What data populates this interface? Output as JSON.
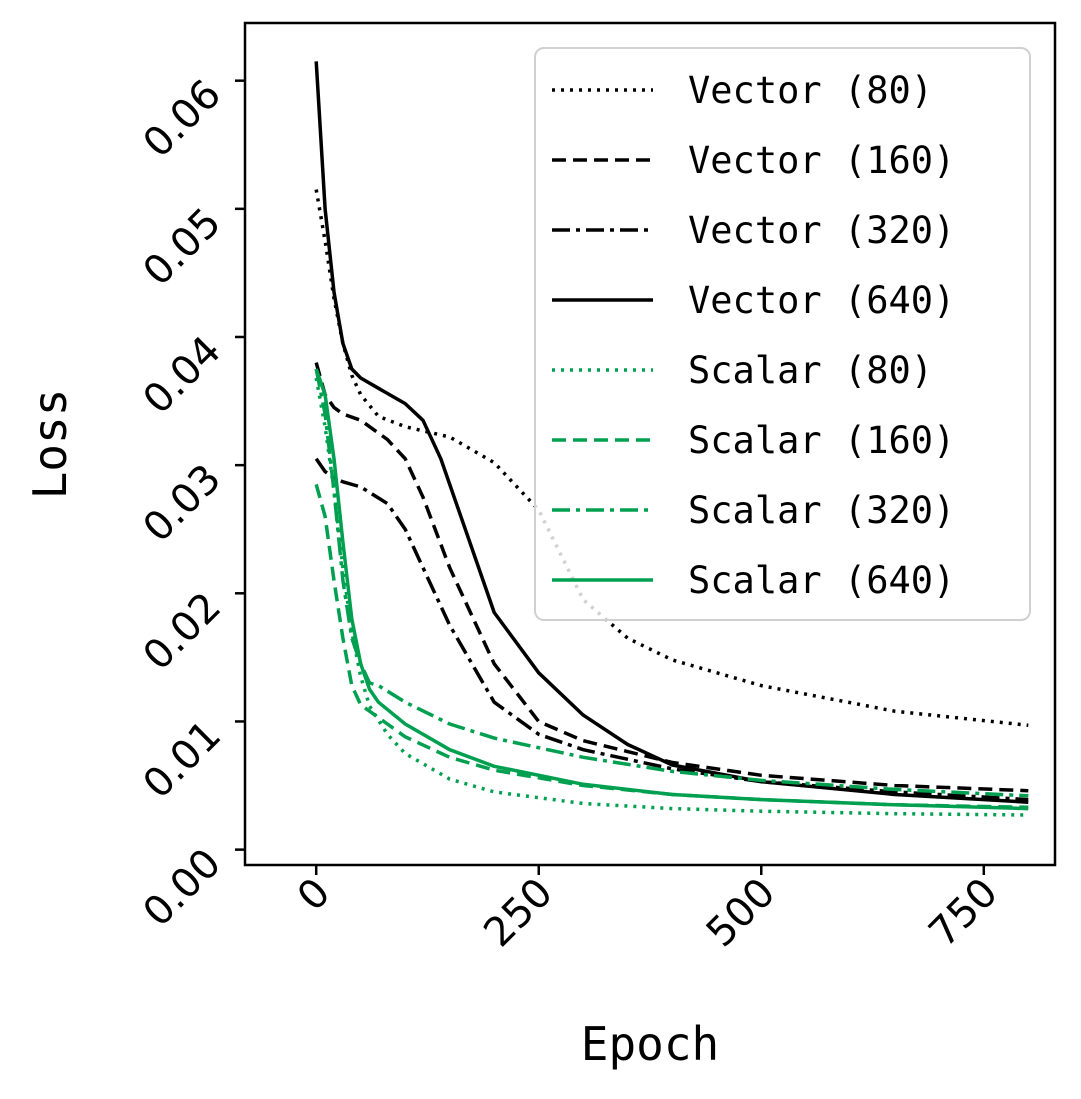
{
  "chart_data": {
    "type": "line",
    "title": "",
    "xlabel": "Epoch",
    "ylabel": "Loss",
    "xlim": [
      -80,
      830
    ],
    "ylim": [
      -0.0012,
      0.0645
    ],
    "xticks": [
      0,
      250,
      500,
      750
    ],
    "xtick_labels": [
      "0",
      "250",
      "500",
      "750"
    ],
    "yticks": [
      0.0,
      0.01,
      0.02,
      0.03,
      0.04,
      0.05,
      0.06
    ],
    "ytick_labels": [
      "0.00",
      "0.01",
      "0.02",
      "0.03",
      "0.04",
      "0.05",
      "0.06"
    ],
    "legend_position": "top-right",
    "grid": false,
    "series": [
      {
        "name": "Vector (80)",
        "color": "#000000",
        "style": "dotted",
        "x": [
          0,
          10,
          20,
          30,
          40,
          50,
          70,
          100,
          150,
          200,
          250,
          300,
          350,
          400,
          500,
          650,
          800
        ],
        "y": [
          0.0515,
          0.0475,
          0.043,
          0.0395,
          0.037,
          0.0355,
          0.0338,
          0.033,
          0.0322,
          0.0302,
          0.0265,
          0.0195,
          0.0165,
          0.0148,
          0.0128,
          0.0108,
          0.0097
        ]
      },
      {
        "name": "Vector (160)",
        "color": "#000000",
        "style": "dashed",
        "x": [
          0,
          10,
          20,
          30,
          50,
          80,
          100,
          120,
          150,
          200,
          250,
          300,
          400,
          500,
          650,
          800
        ],
        "y": [
          0.038,
          0.0355,
          0.0345,
          0.034,
          0.0335,
          0.032,
          0.0305,
          0.0275,
          0.022,
          0.0145,
          0.01,
          0.0085,
          0.0068,
          0.0058,
          0.005,
          0.0046
        ]
      },
      {
        "name": "Vector (320)",
        "color": "#000000",
        "style": "dashdot",
        "x": [
          0,
          10,
          20,
          30,
          50,
          80,
          100,
          120,
          150,
          200,
          250,
          300,
          400,
          500,
          650,
          800
        ],
        "y": [
          0.0305,
          0.0295,
          0.029,
          0.0287,
          0.0283,
          0.027,
          0.025,
          0.022,
          0.0175,
          0.0115,
          0.009,
          0.0078,
          0.0063,
          0.0053,
          0.0045,
          0.0039
        ]
      },
      {
        "name": "Vector (640)",
        "color": "#000000",
        "style": "solid",
        "x": [
          0,
          10,
          20,
          30,
          40,
          50,
          70,
          100,
          120,
          140,
          170,
          200,
          250,
          300,
          350,
          400,
          500,
          650,
          800
        ],
        "y": [
          0.0615,
          0.05,
          0.0435,
          0.0395,
          0.0375,
          0.0368,
          0.036,
          0.0348,
          0.0335,
          0.0305,
          0.0245,
          0.0185,
          0.0138,
          0.0105,
          0.0082,
          0.0066,
          0.0053,
          0.0043,
          0.0037
        ]
      },
      {
        "name": "Scalar (80)",
        "color": "#00a050",
        "style": "dotted",
        "x": [
          0,
          10,
          20,
          30,
          40,
          50,
          60,
          80,
          100,
          150,
          200,
          300,
          400,
          500,
          650,
          800
        ],
        "y": [
          0.0368,
          0.033,
          0.028,
          0.022,
          0.017,
          0.0135,
          0.0112,
          0.009,
          0.0075,
          0.0055,
          0.0045,
          0.0036,
          0.0032,
          0.003,
          0.0028,
          0.0027
        ]
      },
      {
        "name": "Scalar (160)",
        "color": "#00a050",
        "style": "dashed",
        "x": [
          0,
          10,
          20,
          30,
          40,
          50,
          60,
          80,
          100,
          150,
          200,
          300,
          400,
          500,
          650,
          800
        ],
        "y": [
          0.0285,
          0.026,
          0.021,
          0.0165,
          0.0128,
          0.0113,
          0.0108,
          0.0098,
          0.0088,
          0.0072,
          0.0062,
          0.005,
          0.0043,
          0.0039,
          0.0035,
          0.0033
        ]
      },
      {
        "name": "Scalar (320)",
        "color": "#00a050",
        "style": "dashdot",
        "x": [
          0,
          10,
          20,
          30,
          40,
          50,
          60,
          70,
          100,
          150,
          200,
          300,
          400,
          500,
          650,
          800
        ],
        "y": [
          0.0375,
          0.034,
          0.028,
          0.021,
          0.0165,
          0.0145,
          0.013,
          0.0128,
          0.0115,
          0.0098,
          0.0087,
          0.0072,
          0.0061,
          0.0054,
          0.0047,
          0.0042
        ]
      },
      {
        "name": "Scalar (640)",
        "color": "#00a050",
        "style": "solid",
        "x": [
          0,
          10,
          20,
          30,
          40,
          50,
          60,
          70,
          100,
          150,
          200,
          300,
          400,
          500,
          650,
          800
        ],
        "y": [
          0.0375,
          0.0355,
          0.0305,
          0.024,
          0.018,
          0.0145,
          0.0125,
          0.0115,
          0.0098,
          0.0078,
          0.0065,
          0.0051,
          0.0043,
          0.0039,
          0.0035,
          0.0032
        ]
      }
    ]
  }
}
